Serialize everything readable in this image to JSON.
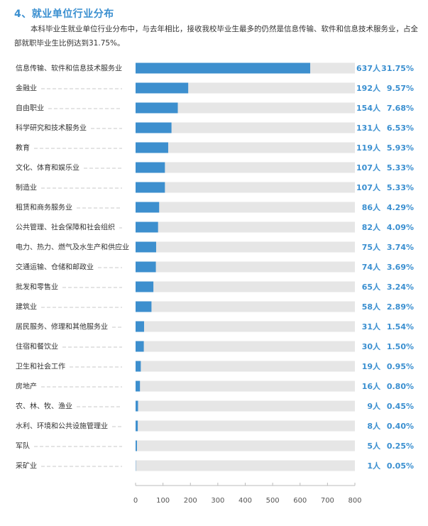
{
  "heading": {
    "title": "4、就业单位行业分布",
    "intro": "本科毕业生就业单位行业分布中，与去年相比，接收我校毕业生最多的仍然是信息传输、软件和信息技术服务业，占全部就职毕业生比例达到31.75%。"
  },
  "colors": {
    "bar": "#3d8fce",
    "track": "#e6e6e6",
    "accent": "#3a8fd0",
    "dash": "#c8c8c8"
  },
  "chart_data": {
    "type": "bar",
    "orientation": "horizontal",
    "title": "",
    "xlabel": "",
    "ylabel": "",
    "xlim": [
      0,
      800
    ],
    "xticks": [
      0,
      100,
      200,
      300,
      400,
      500,
      600,
      700,
      800
    ],
    "grid": false,
    "unit": "人",
    "categories": [
      "信息传输、软件和信息技术服务业",
      "金融业",
      "自由职业",
      "科学研究和技术服务业",
      "教育",
      "文化、体育和娱乐业",
      "制造业",
      "租赁和商务服务业",
      "公共管理、社会保障和社会组织",
      "电力、热力、燃气及水生产和供应业",
      "交通运输、仓储和邮政业",
      "批发和零售业",
      "建筑业",
      "居民服务、修理和其他服务业",
      "住宿和餐饮业",
      "卫生和社会工作",
      "房地产",
      "农、林、牧、渔业",
      "水利、环境和公共设施管理业",
      "军队",
      "采矿业"
    ],
    "values": [
      637,
      192,
      154,
      131,
      119,
      107,
      107,
      86,
      82,
      75,
      74,
      65,
      58,
      31,
      30,
      19,
      16,
      9,
      8,
      5,
      1
    ],
    "count_labels": [
      "637人",
      "192人",
      "154人",
      "131人",
      "119人",
      "107人",
      "107人",
      "86人",
      "82人",
      "75人",
      "74人",
      "65人",
      "58人",
      "31人",
      "30人",
      "19人",
      "16人",
      "9人",
      "8人",
      "5人",
      "1人"
    ],
    "percent_labels": [
      "31.75%",
      "9.57%",
      "7.68%",
      "6.53%",
      "5.93%",
      "5.33%",
      "5.33%",
      "4.29%",
      "4.09%",
      "3.74%",
      "3.69%",
      "3.24%",
      "2.89%",
      "1.54%",
      "1.50%",
      "0.95%",
      "0.80%",
      "0.45%",
      "0.40%",
      "0.25%",
      "0.05%"
    ]
  }
}
